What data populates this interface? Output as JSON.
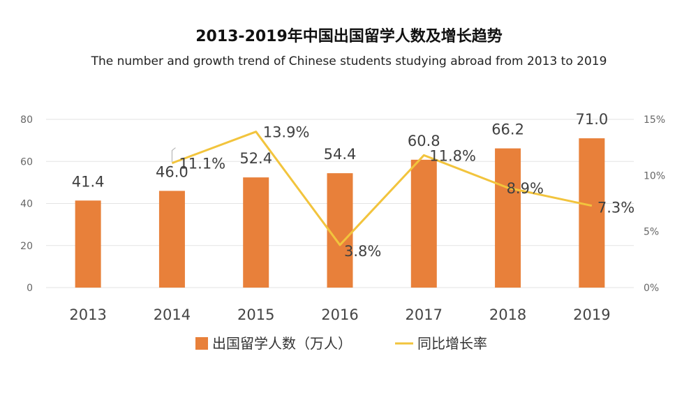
{
  "chart_data": {
    "type": "bar",
    "title": "2013-2019年中国出国留学人数及增长趋势",
    "subtitle": "The number and growth trend of Chinese students studying abroad from 2013 to 2019",
    "categories": [
      "2013",
      "2014",
      "2015",
      "2016",
      "2017",
      "2018",
      "2019"
    ],
    "series": [
      {
        "name": "出国留学人数（万人）",
        "type": "bar",
        "axis": "left",
        "color": "#E8803A",
        "values": [
          41.4,
          46.0,
          52.4,
          54.4,
          60.8,
          66.2,
          71.0
        ],
        "labels": [
          "41.4",
          "46.0",
          "52.4",
          "54.4",
          "60.8",
          "66.2",
          "71.0"
        ]
      },
      {
        "name": "同比增长率",
        "type": "line",
        "axis": "right",
        "color": "#F2C43D",
        "x": [
          "2014",
          "2015",
          "2016",
          "2017",
          "2018",
          "2019"
        ],
        "values": [
          11.1,
          13.9,
          3.8,
          11.8,
          8.9,
          7.3
        ],
        "labels": [
          "11.1%",
          "13.9%",
          "3.8%",
          "11.8%",
          "8.9%",
          "7.3%"
        ]
      }
    ],
    "ylim": [
      0,
      80
    ],
    "yticks": [
      0,
      20,
      40,
      60,
      80
    ],
    "ytick_labels": [
      "0",
      "20",
      "40",
      "60",
      "80"
    ],
    "y2lim": [
      0,
      15
    ],
    "y2ticks": [
      0,
      5,
      10,
      15
    ],
    "y2tick_labels": [
      "0%",
      "5%",
      "10%",
      "15%"
    ],
    "grid": true,
    "legend": "bottom"
  }
}
